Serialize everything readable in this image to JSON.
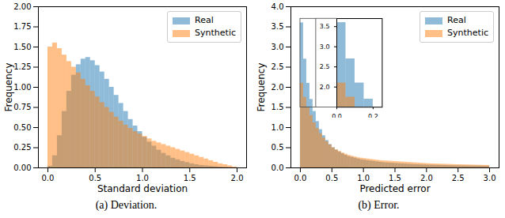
{
  "chart_data": [
    {
      "type": "histogram",
      "caption": "(a) Deviation.",
      "xlabel": "Standard deviation",
      "ylabel": "Frequency",
      "xlim": [
        -0.1,
        2.1
      ],
      "xticks": [
        {
          "value": 0,
          "label": "0.0"
        },
        0.5,
        {
          "value": 1,
          "label": "1.0"
        },
        1.5,
        {
          "value": 2,
          "label": "2.0"
        }
      ],
      "ylim": [
        0,
        2
      ],
      "yticks": [
        {
          "value": 0,
          "label": "0.00"
        },
        0.25,
        {
          "value": 0.5,
          "label": "0.50"
        },
        0.75,
        {
          "value": 1,
          "label": "1.00"
        },
        1.25,
        {
          "value": 1.5,
          "label": "1.50"
        },
        1.75,
        {
          "value": 2,
          "label": "2.00"
        }
      ],
      "legend": "upper right",
      "bins": [
        0,
        0.05,
        0.1,
        0.15,
        0.2,
        0.25,
        0.3,
        0.35,
        0.4,
        0.45,
        0.5,
        0.55,
        0.6,
        0.65,
        0.7,
        0.75,
        0.8,
        0.85,
        0.9,
        0.95,
        1,
        1.05,
        1.1,
        1.15,
        1.2,
        1.25,
        1.3,
        1.35,
        1.4,
        1.45,
        1.5,
        1.55,
        1.6,
        1.65,
        1.7,
        1.75,
        1.8,
        1.85,
        1.9,
        1.95,
        2
      ],
      "series": [
        {
          "name": "Real",
          "color": "#1f77b4",
          "values": [
            0.02,
            0.15,
            0.4,
            0.7,
            0.95,
            1.15,
            1.28,
            1.35,
            1.37,
            1.33,
            1.27,
            1.19,
            1.1,
            1.0,
            0.9,
            0.8,
            0.7,
            0.6,
            0.52,
            0.45,
            0.38,
            0.32,
            0.27,
            0.22,
            0.18,
            0.15,
            0.12,
            0.1,
            0.08,
            0.065,
            0.05,
            0.04,
            0.03,
            0.025,
            0.02,
            0.015,
            0.01,
            0.008,
            0.005,
            0.003
          ]
        },
        {
          "name": "Synthetic",
          "color": "#ff7f0e",
          "values": [
            1.5,
            1.55,
            1.48,
            1.4,
            1.32,
            1.25,
            1.18,
            1.1,
            1.02,
            0.95,
            0.88,
            0.81,
            0.75,
            0.69,
            0.63,
            0.58,
            0.53,
            0.49,
            0.45,
            0.42,
            0.39,
            0.36,
            0.33,
            0.31,
            0.29,
            0.27,
            0.25,
            0.23,
            0.21,
            0.19,
            0.17,
            0.15,
            0.13,
            0.11,
            0.09,
            0.07,
            0.05,
            0.04,
            0.025,
            0.01
          ]
        }
      ]
    },
    {
      "type": "histogram",
      "caption": "(b) Error.",
      "xlabel": "Predicted error",
      "ylabel": "Frequency",
      "xlim": [
        -0.15,
        3.15
      ],
      "xticks": [
        {
          "value": 0,
          "label": "0.0"
        },
        0.5,
        {
          "value": 1,
          "label": "1.0"
        },
        1.5,
        {
          "value": 2,
          "label": "2.0"
        },
        2.5,
        {
          "value": 3,
          "label": "3.0"
        }
      ],
      "ylim": [
        0,
        4
      ],
      "yticks": [
        {
          "value": 0,
          "label": "0.0"
        },
        0.5,
        {
          "value": 1,
          "label": "1.0"
        },
        1.5,
        {
          "value": 2,
          "label": "2.0"
        },
        2.5,
        {
          "value": 3,
          "label": "3.0"
        },
        3.5,
        {
          "value": 4,
          "label": "4.0"
        }
      ],
      "legend": "upper right",
      "bins": [
        0,
        0.05,
        0.1,
        0.15,
        0.2,
        0.25,
        0.3,
        0.35,
        0.4,
        0.45,
        0.5,
        0.55,
        0.6,
        0.65,
        0.7,
        0.75,
        0.8,
        0.85,
        0.9,
        0.95,
        1,
        1.05,
        1.1,
        1.15,
        1.2,
        1.25,
        1.3,
        1.35,
        1.4,
        1.45,
        1.5,
        1.55,
        1.6,
        1.65,
        1.7,
        1.75,
        1.8,
        1.85,
        1.9,
        1.95,
        2,
        2.05,
        2.1,
        2.15,
        2.2,
        2.25,
        2.3,
        2.35,
        2.4,
        2.45,
        2.5,
        2.55,
        2.6,
        2.65,
        2.7,
        2.75,
        2.8,
        2.85,
        2.9,
        2.95,
        3
      ],
      "series": [
        {
          "name": "Real",
          "color": "#1f77b4",
          "values": [
            3.6,
            2.7,
            2.1,
            1.7,
            1.4,
            1.15,
            0.95,
            0.8,
            0.68,
            0.58,
            0.5,
            0.44,
            0.39,
            0.35,
            0.31,
            0.28,
            0.26,
            0.24,
            0.22,
            0.2,
            0.19,
            0.18,
            0.17,
            0.16,
            0.15,
            0.14,
            0.13,
            0.125,
            0.12,
            0.115,
            0.11,
            0.105,
            0.1,
            0.095,
            0.09,
            0.085,
            0.08,
            0.078,
            0.075,
            0.072,
            0.07,
            0.068,
            0.066,
            0.064,
            0.062,
            0.06,
            0.058,
            0.056,
            0.054,
            0.052,
            0.05,
            0.049,
            0.048,
            0.047,
            0.046,
            0.045,
            0.044,
            0.043,
            0.042,
            0.041
          ]
        },
        {
          "name": "Synthetic",
          "color": "#ff7f0e",
          "values": [
            2.1,
            1.75,
            1.5,
            1.3,
            1.12,
            0.98,
            0.85,
            0.74,
            0.65,
            0.57,
            0.5,
            0.45,
            0.41,
            0.37,
            0.34,
            0.31,
            0.29,
            0.27,
            0.25,
            0.24,
            0.23,
            0.22,
            0.21,
            0.2,
            0.19,
            0.18,
            0.175,
            0.17,
            0.165,
            0.16,
            0.155,
            0.15,
            0.145,
            0.14,
            0.135,
            0.13,
            0.125,
            0.12,
            0.115,
            0.11,
            0.105,
            0.1,
            0.098,
            0.095,
            0.092,
            0.09,
            0.088,
            0.085,
            0.082,
            0.08,
            0.078,
            0.076,
            0.074,
            0.072,
            0.07,
            0.068,
            0.066,
            0.064,
            0.062,
            0.06
          ]
        }
      ],
      "inset": {
        "xlim": [
          0,
          0.25
        ],
        "ylim": [
          1.5,
          3.7
        ],
        "xticks": [
          {
            "value": 0,
            "label": "0.0"
          },
          0.2
        ],
        "yticks": [
          {
            "value": 2,
            "label": "2.0"
          },
          2.5,
          {
            "value": 3,
            "label": "3.0"
          },
          3.5
        ]
      }
    }
  ]
}
